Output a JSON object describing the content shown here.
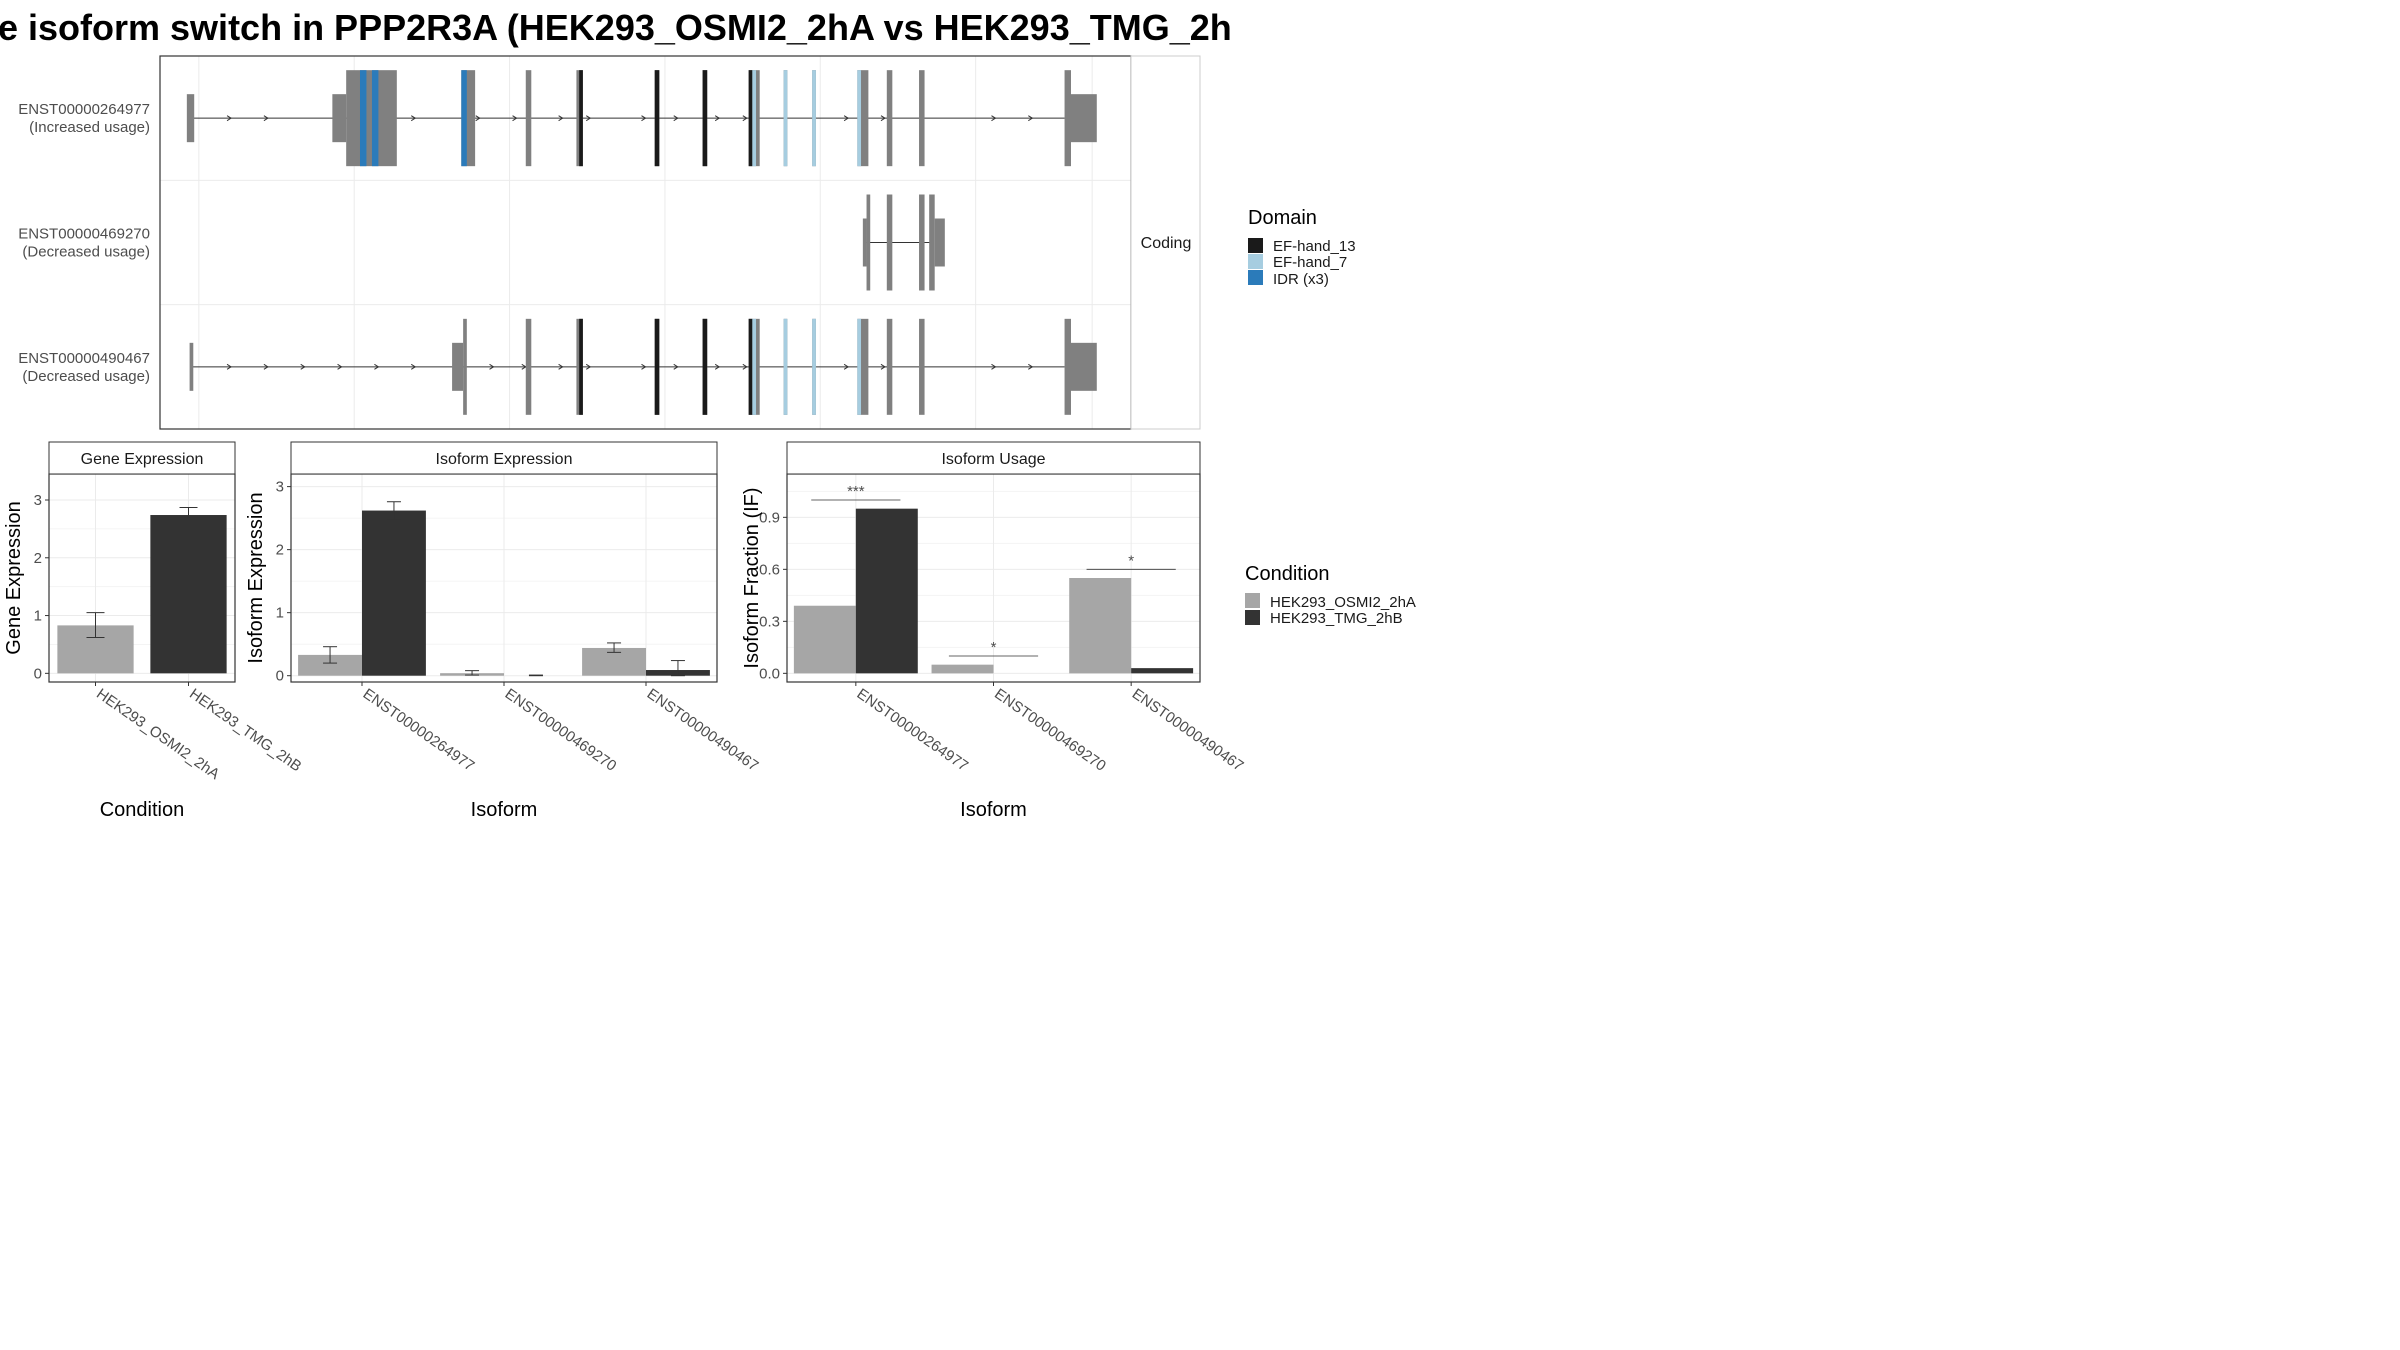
{
  "title": "e isoform switch in PPP2R3A (HEK293_OSMI2_2hA vs HEK293_TMG_2h",
  "colors": {
    "condition_a": "#a6a6a6",
    "condition_b": "#333333",
    "exon": "#808080",
    "ef_hand_13": "#1a1a1a",
    "ef_hand_7": "#a6cde0",
    "idr": "#2b7bba",
    "grid": "#ebebeb",
    "border": "#333333"
  },
  "chart_data": [
    {
      "type": "structure",
      "panel": "transcript-structure",
      "facet_label": "Coding",
      "x_range": [
        0,
        1000
      ],
      "isoforms": [
        {
          "id": "ENST00000264977",
          "label": "(Increased usage)",
          "intron_range": [
            5,
            955
          ],
          "arrows_at": [
            50,
            90,
            200,
            250,
            320,
            360,
            410,
            440,
            500,
            535,
            580,
            610,
            720,
            760,
            880,
            920
          ],
          "exons": [
            {
              "start": 2,
              "end": 10,
              "kind": "utr"
            },
            {
              "start": 160,
              "end": 175,
              "kind": "utr"
            },
            {
              "start": 175,
              "end": 230,
              "kind": "cds"
            },
            {
              "start": 300,
              "end": 315,
              "kind": "cds"
            },
            {
              "start": 370,
              "end": 376,
              "kind": "cds"
            },
            {
              "start": 425,
              "end": 432,
              "kind": "cds"
            },
            {
              "start": 510,
              "end": 515,
              "kind": "cds"
            },
            {
              "start": 562,
              "end": 567,
              "kind": "cds"
            },
            {
              "start": 612,
              "end": 624,
              "kind": "cds"
            },
            {
              "start": 650,
              "end": 654,
              "kind": "cds"
            },
            {
              "start": 681,
              "end": 685,
              "kind": "cds"
            },
            {
              "start": 730,
              "end": 742,
              "kind": "cds"
            },
            {
              "start": 762,
              "end": 768,
              "kind": "cds"
            },
            {
              "start": 797,
              "end": 803,
              "kind": "cds"
            },
            {
              "start": 955,
              "end": 962,
              "kind": "cds"
            },
            {
              "start": 962,
              "end": 990,
              "kind": "utr"
            }
          ],
          "domains": [
            {
              "start": 190,
              "end": 197,
              "domain": "IDR (x3)"
            },
            {
              "start": 203,
              "end": 210,
              "domain": "IDR (x3)"
            },
            {
              "start": 300,
              "end": 306,
              "domain": "IDR (x3)"
            },
            {
              "start": 428,
              "end": 432,
              "domain": "EF-hand_13"
            },
            {
              "start": 510,
              "end": 515,
              "domain": "EF-hand_13"
            },
            {
              "start": 562,
              "end": 567,
              "domain": "EF-hand_13"
            },
            {
              "start": 612,
              "end": 616,
              "domain": "EF-hand_13"
            },
            {
              "start": 616,
              "end": 620,
              "domain": "EF-hand_7"
            },
            {
              "start": 650,
              "end": 654,
              "domain": "EF-hand_7"
            },
            {
              "start": 681,
              "end": 685,
              "domain": "EF-hand_7"
            },
            {
              "start": 730,
              "end": 734,
              "domain": "EF-hand_7"
            }
          ]
        },
        {
          "id": "ENST00000469270",
          "label": "(Decreased usage)",
          "intron_range": [
            740,
            810
          ],
          "arrows_at": [],
          "exons": [
            {
              "start": 736,
              "end": 740,
              "kind": "utr"
            },
            {
              "start": 740,
              "end": 744,
              "kind": "cds"
            },
            {
              "start": 762,
              "end": 768,
              "kind": "cds"
            },
            {
              "start": 797,
              "end": 803,
              "kind": "cds"
            },
            {
              "start": 808,
              "end": 814,
              "kind": "cds"
            },
            {
              "start": 814,
              "end": 825,
              "kind": "utr"
            }
          ],
          "domains": []
        },
        {
          "id": "ENST00000490467",
          "label": "(Decreased usage)",
          "intron_range": [
            8,
            955
          ],
          "arrows_at": [
            50,
            90,
            130,
            170,
            210,
            250,
            335,
            370,
            410,
            440,
            500,
            535,
            580,
            610,
            720,
            760,
            880,
            920
          ],
          "exons": [
            {
              "start": 5,
              "end": 9,
              "kind": "utr"
            },
            {
              "start": 290,
              "end": 302,
              "kind": "utr"
            },
            {
              "start": 302,
              "end": 306,
              "kind": "cds"
            },
            {
              "start": 370,
              "end": 376,
              "kind": "cds"
            },
            {
              "start": 425,
              "end": 432,
              "kind": "cds"
            },
            {
              "start": 510,
              "end": 515,
              "kind": "cds"
            },
            {
              "start": 562,
              "end": 567,
              "kind": "cds"
            },
            {
              "start": 612,
              "end": 624,
              "kind": "cds"
            },
            {
              "start": 650,
              "end": 654,
              "kind": "cds"
            },
            {
              "start": 681,
              "end": 685,
              "kind": "cds"
            },
            {
              "start": 730,
              "end": 742,
              "kind": "cds"
            },
            {
              "start": 762,
              "end": 768,
              "kind": "cds"
            },
            {
              "start": 797,
              "end": 803,
              "kind": "cds"
            },
            {
              "start": 955,
              "end": 962,
              "kind": "cds"
            },
            {
              "start": 962,
              "end": 990,
              "kind": "utr"
            }
          ],
          "domains": [
            {
              "start": 428,
              "end": 432,
              "domain": "EF-hand_13"
            },
            {
              "start": 510,
              "end": 515,
              "domain": "EF-hand_13"
            },
            {
              "start": 562,
              "end": 567,
              "domain": "EF-hand_13"
            },
            {
              "start": 612,
              "end": 616,
              "domain": "EF-hand_13"
            },
            {
              "start": 616,
              "end": 620,
              "domain": "EF-hand_7"
            },
            {
              "start": 650,
              "end": 654,
              "domain": "EF-hand_7"
            },
            {
              "start": 681,
              "end": 685,
              "domain": "EF-hand_7"
            },
            {
              "start": 730,
              "end": 734,
              "domain": "EF-hand_7"
            }
          ]
        }
      ],
      "legend": {
        "title": "Domain",
        "entries": [
          "EF-hand_13",
          "EF-hand_7",
          "IDR (x3)"
        ]
      }
    },
    {
      "type": "bar",
      "panel": "gene-expression",
      "strip_title": "Gene Expression",
      "xlabel": "Condition",
      "ylabel": "Gene Expression",
      "categories": [
        "HEK293_OSMI2_2hA",
        "HEK293_TMG_2hB"
      ],
      "values": [
        0.83,
        2.74
      ],
      "error_low": [
        0.62,
        2.62
      ],
      "error_high": [
        1.05,
        2.87
      ],
      "ylim": [
        -0.15,
        3.45
      ],
      "yticks": [
        0,
        1,
        2,
        3
      ]
    },
    {
      "type": "bar",
      "panel": "isoform-expression",
      "strip_title": "Isoform Expression",
      "xlabel": "Isoform",
      "ylabel": "Isoform Expression",
      "categories": [
        "ENST00000264977",
        "ENST00000469270",
        "ENST00000490467"
      ],
      "series": [
        {
          "condition": "HEK293_OSMI2_2hA",
          "values": [
            0.33,
            0.04,
            0.44
          ],
          "error_low": [
            0.2,
            0.01,
            0.37
          ],
          "error_high": [
            0.46,
            0.08,
            0.52
          ]
        },
        {
          "condition": "HEK293_TMG_2hB",
          "values": [
            2.62,
            0.0,
            0.09
          ],
          "error_low": [
            2.48,
            0.0,
            0.0
          ],
          "error_high": [
            2.76,
            0.01,
            0.24
          ]
        }
      ],
      "ylim": [
        -0.1,
        3.2
      ],
      "yticks": [
        0,
        1,
        2,
        3
      ]
    },
    {
      "type": "bar",
      "panel": "isoform-usage",
      "strip_title": "Isoform Usage",
      "xlabel": "Isoform",
      "ylabel": "Isoform Fraction (IF)",
      "categories": [
        "ENST00000264977",
        "ENST00000469270",
        "ENST00000490467"
      ],
      "series": [
        {
          "condition": "HEK293_OSMI2_2hA",
          "values": [
            0.39,
            0.05,
            0.55
          ]
        },
        {
          "condition": "HEK293_TMG_2hB",
          "values": [
            0.95,
            0.0,
            0.03
          ]
        }
      ],
      "significance": [
        {
          "label": "***",
          "level": 1.0
        },
        {
          "label": "*",
          "level": 0.1
        },
        {
          "label": "*",
          "level": 0.6
        }
      ],
      "ylim": [
        -0.05,
        1.15
      ],
      "yticks": [
        0.0,
        0.3,
        0.6,
        0.9
      ],
      "ytick_labels": [
        "0.0",
        "0.3",
        "0.6",
        "0.9"
      ]
    }
  ],
  "condition_legend": {
    "title": "Condition",
    "entries": [
      "HEK293_OSMI2_2hA",
      "HEK293_TMG_2hB"
    ]
  }
}
